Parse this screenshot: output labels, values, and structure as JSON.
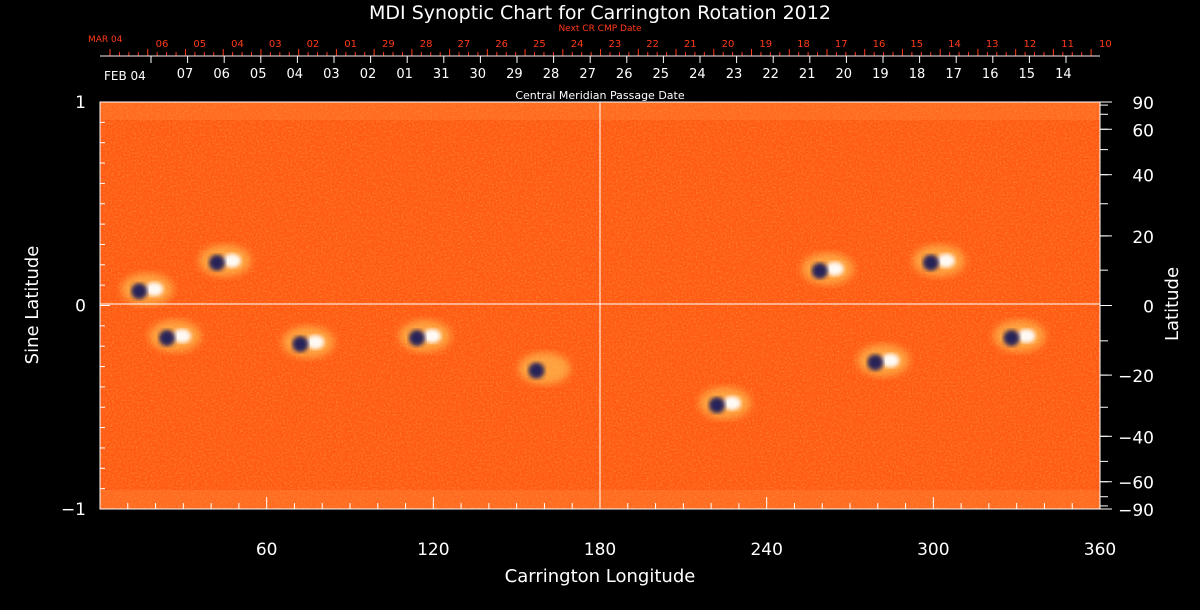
{
  "chart_data": {
    "type": "heatmap",
    "title": "MDI Synoptic Chart for Carrington Rotation 2012",
    "xlabel": "Carrington Longitude",
    "ylabel_left": "Sine Latitude",
    "ylabel_right": "Latitude",
    "xlim": [
      0,
      360
    ],
    "ylim": [
      -1,
      1
    ],
    "x_ticks": [
      60,
      120,
      180,
      240,
      300,
      360
    ],
    "y_ticks_left": [
      1,
      0,
      -1
    ],
    "y_ticks_left_labels": [
      "1",
      "0",
      "−1"
    ],
    "y_ticks_right": [
      90,
      60,
      40,
      20,
      0,
      -20,
      -40,
      -60,
      -90
    ],
    "y_ticks_right_labels": [
      "90",
      "60",
      "40",
      "20",
      "0",
      "−20",
      "−40",
      "−60",
      "−90"
    ],
    "grid": "center crosshair at longitude 180 and sine latitude 0",
    "top_axis_next": {
      "label": "Next CR CMP Date",
      "start_label": "MAR 04",
      "days": [
        "06",
        "05",
        "04",
        "03",
        "02",
        "01",
        "29",
        "28",
        "27",
        "26",
        "25",
        "24",
        "23",
        "22",
        "21",
        "20",
        "19",
        "18",
        "17",
        "16",
        "15",
        "14",
        "13",
        "12",
        "11",
        "10"
      ]
    },
    "top_axis_current": {
      "label": "Central Meridian Passage Date",
      "start_label": "FEB 04",
      "days": [
        "07",
        "06",
        "05",
        "04",
        "03",
        "02",
        "01",
        "31",
        "30",
        "29",
        "28",
        "27",
        "26",
        "25",
        "24",
        "23",
        "22",
        "21",
        "20",
        "19",
        "18",
        "17",
        "16",
        "15",
        "14"
      ]
    },
    "colors": {
      "background": "#000000",
      "field_base": "#ff5a14",
      "positive_polarity": "#ffffff",
      "negative_polarity": "#1a1a5a",
      "next_cr_axis": "#ff3a1a",
      "axis": "#ffffff"
    },
    "active_regions": [
      {
        "lon": 17,
        "sinlat": 0.08,
        "polarity": "mixed"
      },
      {
        "lon": 45,
        "sinlat": 0.22,
        "polarity": "mixed"
      },
      {
        "lon": 27,
        "sinlat": -0.15,
        "polarity": "mixed"
      },
      {
        "lon": 75,
        "sinlat": -0.18,
        "polarity": "mixed"
      },
      {
        "lon": 117,
        "sinlat": -0.15,
        "polarity": "mixed"
      },
      {
        "lon": 160,
        "sinlat": -0.31,
        "polarity": "negative"
      },
      {
        "lon": 225,
        "sinlat": -0.48,
        "polarity": "mixed"
      },
      {
        "lon": 262,
        "sinlat": 0.18,
        "polarity": "mixed"
      },
      {
        "lon": 282,
        "sinlat": -0.27,
        "polarity": "mixed"
      },
      {
        "lon": 302,
        "sinlat": 0.22,
        "polarity": "mixed"
      },
      {
        "lon": 331,
        "sinlat": -0.15,
        "polarity": "mixed"
      }
    ]
  }
}
